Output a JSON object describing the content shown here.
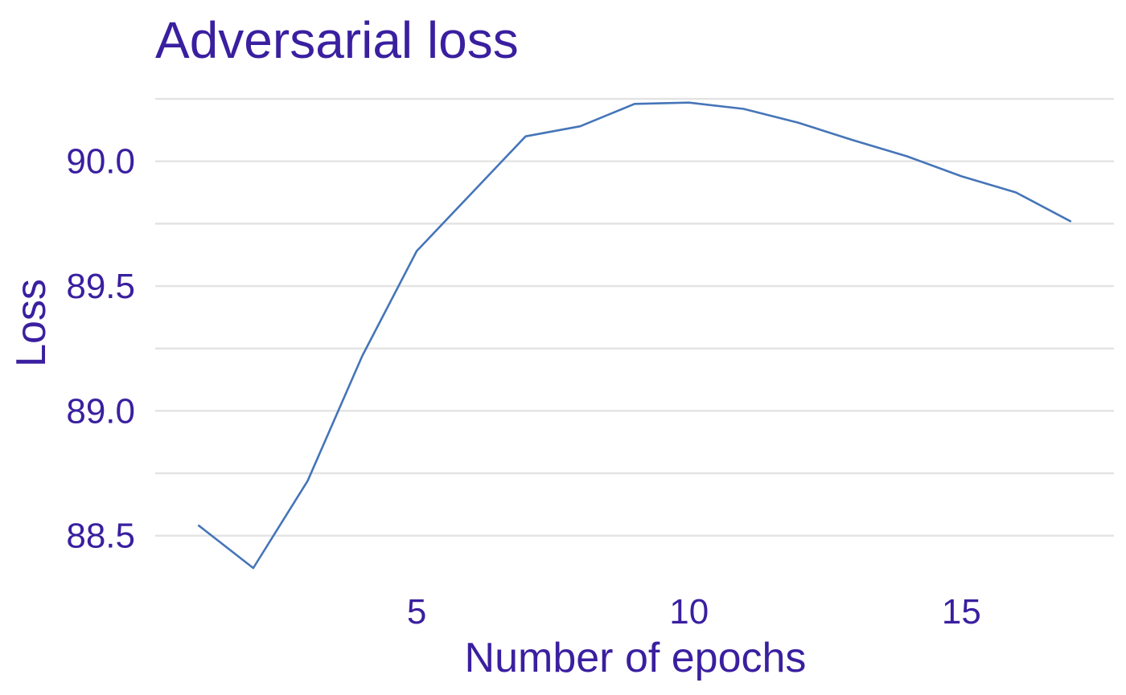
{
  "chart_data": {
    "type": "line",
    "title": "Adversarial loss",
    "xlabel": "Number of epochs",
    "ylabel": "Loss",
    "x": [
      1,
      2,
      3,
      4,
      5,
      6,
      7,
      8,
      9,
      10,
      11,
      12,
      13,
      14,
      15,
      16,
      17
    ],
    "series": [
      {
        "color": "#4575b8",
        "values": [
          88.54,
          88.37,
          88.72,
          89.22,
          89.64,
          89.87,
          90.1,
          90.14,
          90.23,
          90.235,
          90.21,
          90.155,
          90.085,
          90.02,
          89.94,
          89.875,
          89.76
        ]
      }
    ],
    "xticks": [
      5,
      10,
      15
    ],
    "yticks": [
      88.5,
      89.0,
      89.5,
      90.0
    ],
    "yticks_minor": [
      88.75,
      89.25,
      89.75,
      90.25
    ],
    "xlim": [
      0.2,
      17.8
    ],
    "ylim": [
      88.28,
      90.35
    ],
    "grid": "horizontal",
    "legend": "none",
    "text_color": "#3a1fa0"
  }
}
